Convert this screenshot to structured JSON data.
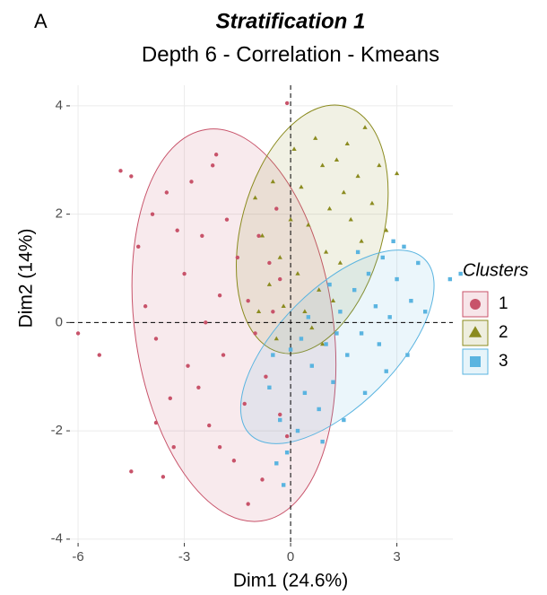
{
  "panel_label": "A",
  "chart_data": {
    "type": "scatter",
    "title": "Stratification 1",
    "subtitle": "Depth 6 - Correlation - Kmeans",
    "x_label": "Dim1 (24.6%)",
    "y_label": "Dim2 (14%)",
    "xlim": [
      -6.23,
      4.58
    ],
    "ylim": [
      -4.07,
      4.38
    ],
    "xticks": [
      -6,
      -3,
      0,
      3
    ],
    "yticks": [
      -4,
      -2,
      0,
      2,
      4
    ],
    "grid": true,
    "vline": 0,
    "hline": 0,
    "legend_title": "Clusters",
    "legend_position": "right",
    "series": [
      {
        "name": "1",
        "color": "#c8536a",
        "marker": "circle",
        "ellipse": {
          "cx": -1.6,
          "cy": -0.05,
          "rx": 2.8,
          "ry": 3.65,
          "angle": -8
        },
        "x": [
          -4.8,
          -4.5,
          -6,
          -5.4,
          -4.5,
          -3.6,
          -4.3,
          -3.9,
          -3.5,
          -3.2,
          -3.0,
          -2.8,
          -2.5,
          -2.2,
          -2.0,
          -1.8,
          -1.5,
          -1.2,
          -0.9,
          -0.6,
          -0.4,
          -0.3,
          -0.1,
          -2.0,
          -1.6,
          -1.2,
          -0.8,
          -2.6,
          -3.4,
          -3.8,
          -2.9,
          -1.9,
          -1.3,
          -0.7,
          -0.3,
          -0.1,
          -3.8,
          -2.3,
          -4.1,
          -2.4,
          -1.0,
          -0.5,
          -2.1,
          -3.3
        ],
        "y": [
          2.8,
          2.7,
          -0.2,
          -0.6,
          -2.75,
          -2.85,
          1.4,
          2.0,
          2.4,
          1.7,
          0.9,
          2.6,
          1.6,
          2.9,
          0.5,
          1.9,
          1.2,
          0.4,
          1.6,
          1.1,
          2.1,
          0.8,
          4.05,
          -2.3,
          -2.55,
          -3.35,
          -2.9,
          -1.2,
          -1.4,
          -0.3,
          -0.8,
          -0.6,
          -1.5,
          -1.0,
          -1.7,
          -2.1,
          -1.85,
          -1.9,
          0.3,
          0.0,
          -0.2,
          0.2,
          3.1,
          -2.3
        ]
      },
      {
        "name": "2",
        "color": "#8b8b1f",
        "marker": "triangle",
        "ellipse": {
          "cx": 0.61,
          "cy": 1.72,
          "rx": 2.0,
          "ry": 2.35,
          "angle": 15
        },
        "x": [
          -1.0,
          -0.8,
          -0.5,
          -0.3,
          0.1,
          0.3,
          0.5,
          0.7,
          0.9,
          1.1,
          1.3,
          1.5,
          1.7,
          1.9,
          2.1,
          2.3,
          2.5,
          2.7,
          3.0,
          -0.6,
          -0.2,
          0.2,
          0.4,
          0.6,
          0.8,
          1.0,
          1.2,
          -0.9,
          0.0,
          1.6,
          2.0,
          -0.4,
          0.9,
          1.4
        ],
        "y": [
          2.3,
          1.6,
          2.6,
          1.2,
          3.2,
          2.5,
          1.8,
          3.4,
          2.9,
          2.1,
          3.0,
          2.4,
          1.9,
          2.7,
          3.6,
          2.2,
          2.9,
          1.7,
          2.75,
          0.7,
          0.3,
          0.9,
          0.2,
          -0.1,
          0.6,
          1.3,
          0.4,
          0.2,
          1.9,
          3.3,
          1.5,
          -0.3,
          -0.4,
          1.1
        ]
      },
      {
        "name": "3",
        "color": "#5ab4e0",
        "marker": "square",
        "ellipse": {
          "cx": 1.32,
          "cy": -0.45,
          "rx": 3.49,
          "ry": 1.08,
          "angle": -45
        },
        "x": [
          -0.6,
          -0.3,
          -0.1,
          0.2,
          0.4,
          0.6,
          0.8,
          1.0,
          1.2,
          1.4,
          1.6,
          1.8,
          2.0,
          2.2,
          2.4,
          2.6,
          2.8,
          3.0,
          3.2,
          3.4,
          3.6,
          3.8,
          4.5,
          4.8,
          3.3,
          2.7,
          2.1,
          1.5,
          0.9,
          -0.2,
          0.0,
          0.5,
          1.1,
          1.9,
          2.9,
          -0.5,
          0.3,
          1.3,
          2.5,
          -0.4
        ],
        "y": [
          -1.2,
          -1.8,
          -2.4,
          -2.0,
          -1.3,
          -0.8,
          -1.6,
          -0.4,
          -1.1,
          0.2,
          -0.6,
          0.6,
          -0.2,
          0.9,
          0.3,
          1.2,
          0.1,
          0.8,
          1.4,
          0.4,
          1.1,
          0.2,
          0.8,
          0.9,
          -0.6,
          -0.9,
          -1.3,
          -1.8,
          -2.2,
          -3.0,
          -0.5,
          0.1,
          0.7,
          1.3,
          1.5,
          -0.6,
          -0.3,
          -0.2,
          -0.4,
          -2.6
        ]
      }
    ]
  }
}
